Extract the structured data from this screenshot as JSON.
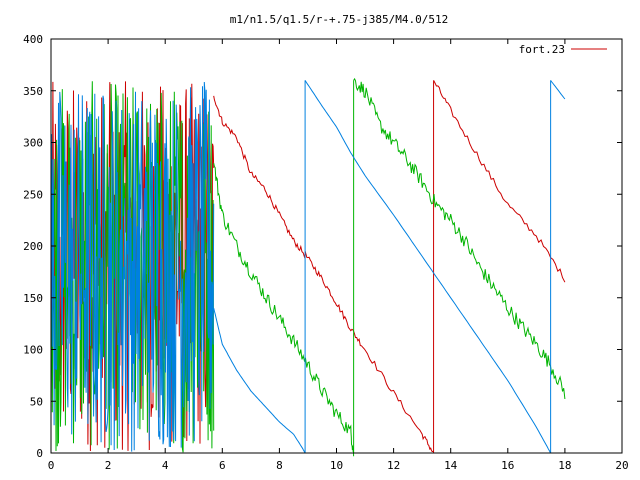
{
  "chart_data": {
    "type": "line",
    "title": "m1/n1.5/q1.5/r-+.75-j385/M4.0/512",
    "xlabel": "",
    "ylabel": "",
    "xlim": [
      0,
      20
    ],
    "ylim": [
      0,
      400
    ],
    "xticks": [
      "0",
      "2",
      "4",
      "6",
      "8",
      "10",
      "12",
      "14",
      "16",
      "18",
      "20"
    ],
    "yticks": [
      "0",
      "50",
      "100",
      "150",
      "200",
      "250",
      "300",
      "350",
      "400"
    ],
    "grid": false,
    "legend": {
      "position": "top-right",
      "entries": [
        {
          "label": "fort.23",
          "color": "#cc0000"
        }
      ]
    },
    "series": [
      {
        "color": "#cc0000",
        "wrap_period": 360,
        "chaotic_x": [
          0,
          5.7
        ],
        "points": [
          [
            5.7,
            345
          ],
          [
            6.0,
            320
          ],
          [
            6.5,
            305
          ],
          [
            7.0,
            270
          ],
          [
            7.5,
            255
          ],
          [
            8.0,
            230
          ],
          [
            8.5,
            205
          ],
          [
            9.0,
            188
          ],
          [
            9.5,
            168
          ],
          [
            10.0,
            145
          ],
          [
            10.5,
            120
          ],
          [
            11.0,
            100
          ],
          [
            12.0,
            58
          ],
          [
            13.0,
            18
          ],
          [
            13.4,
            0
          ],
          [
            13.4,
            360
          ],
          [
            14.0,
            331
          ],
          [
            15.0,
            285
          ],
          [
            16.0,
            240
          ],
          [
            17.0,
            210
          ],
          [
            18.0,
            168
          ]
        ]
      },
      {
        "color": "#00b400",
        "wrap_period": 360,
        "chaotic_x": [
          0,
          5.7
        ],
        "points": [
          [
            5.7,
            280
          ],
          [
            6.0,
            230
          ],
          [
            6.5,
            200
          ],
          [
            7.0,
            175
          ],
          [
            7.5,
            152
          ],
          [
            8.0,
            130
          ],
          [
            8.5,
            108
          ],
          [
            9.0,
            85
          ],
          [
            9.5,
            60
          ],
          [
            10.0,
            38
          ],
          [
            10.5,
            20
          ],
          [
            10.6,
            0
          ],
          [
            10.6,
            360
          ],
          [
            11.0,
            350
          ],
          [
            11.5,
            318
          ],
          [
            12.0,
            300
          ],
          [
            12.5,
            282
          ],
          [
            13.0,
            262
          ],
          [
            13.5,
            240
          ],
          [
            14.0,
            225
          ],
          [
            14.5,
            205
          ],
          [
            15.0,
            180
          ],
          [
            15.5,
            160
          ],
          [
            16.0,
            140
          ],
          [
            16.5,
            122
          ],
          [
            17.0,
            105
          ],
          [
            17.5,
            85
          ],
          [
            18.0,
            58
          ]
        ]
      },
      {
        "color": "#0080e0",
        "wrap_period": 360,
        "chaotic_x": [
          0,
          5.7
        ],
        "points": [
          [
            5.7,
            140
          ],
          [
            6.0,
            105
          ],
          [
            6.5,
            80
          ],
          [
            7.0,
            60
          ],
          [
            7.5,
            45
          ],
          [
            8.0,
            30
          ],
          [
            8.5,
            18
          ],
          [
            8.8,
            5
          ],
          [
            8.9,
            0
          ],
          [
            8.9,
            360
          ],
          [
            9.5,
            335
          ],
          [
            10.0,
            315
          ],
          [
            10.5,
            290
          ],
          [
            11.0,
            268
          ],
          [
            12.0,
            230
          ],
          [
            13.0,
            190
          ],
          [
            14.0,
            150
          ],
          [
            15.0,
            110
          ],
          [
            16.0,
            70
          ],
          [
            17.0,
            25
          ],
          [
            17.5,
            0
          ],
          [
            17.5,
            360
          ],
          [
            18.0,
            342
          ]
        ]
      }
    ]
  }
}
